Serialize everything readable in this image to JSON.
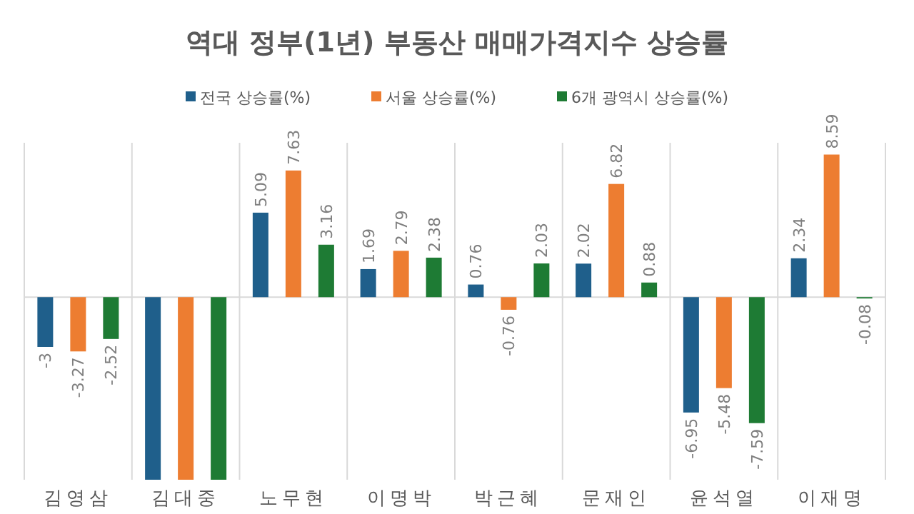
{
  "chart_data": {
    "type": "bar",
    "title": "역대 정부(1년) 부동산 매매가격지수 상승률",
    "categories": [
      "김영삼",
      "김대중",
      "노무현",
      "이명박",
      "박근혜",
      "문재인",
      "윤석열",
      "이재명"
    ],
    "series": [
      {
        "name": "전국 상승률(%)",
        "color": "#1f5f8b",
        "values": [
          -3,
          -11,
          5.09,
          1.69,
          0.76,
          2.02,
          -6.95,
          2.34
        ],
        "value_labels": [
          "-3",
          null,
          "5.09",
          "1.69",
          "0.76",
          "2.02",
          "-6.95",
          "2.34"
        ]
      },
      {
        "name": "서울 상승률(%)",
        "color": "#ed7d31",
        "values": [
          -3.27,
          -11,
          7.63,
          2.79,
          -0.76,
          6.82,
          -5.48,
          8.59
        ],
        "value_labels": [
          "-3.27",
          null,
          "7.63",
          "2.79",
          "-0.76",
          "6.82",
          "-5.48",
          "8.59"
        ]
      },
      {
        "name": "6개 광역시 상승률(%)",
        "color": "#1e7b34",
        "values": [
          -2.52,
          -11,
          3.16,
          2.38,
          2.03,
          0.88,
          -7.59,
          -0.08
        ],
        "value_labels": [
          "-2.52",
          null,
          "3.16",
          "2.38",
          "2.03",
          "0.88",
          "-7.59",
          "-0.08"
        ]
      }
    ],
    "ylim": [
      -11,
      9.3
    ],
    "grid": "x",
    "legend": "top"
  }
}
